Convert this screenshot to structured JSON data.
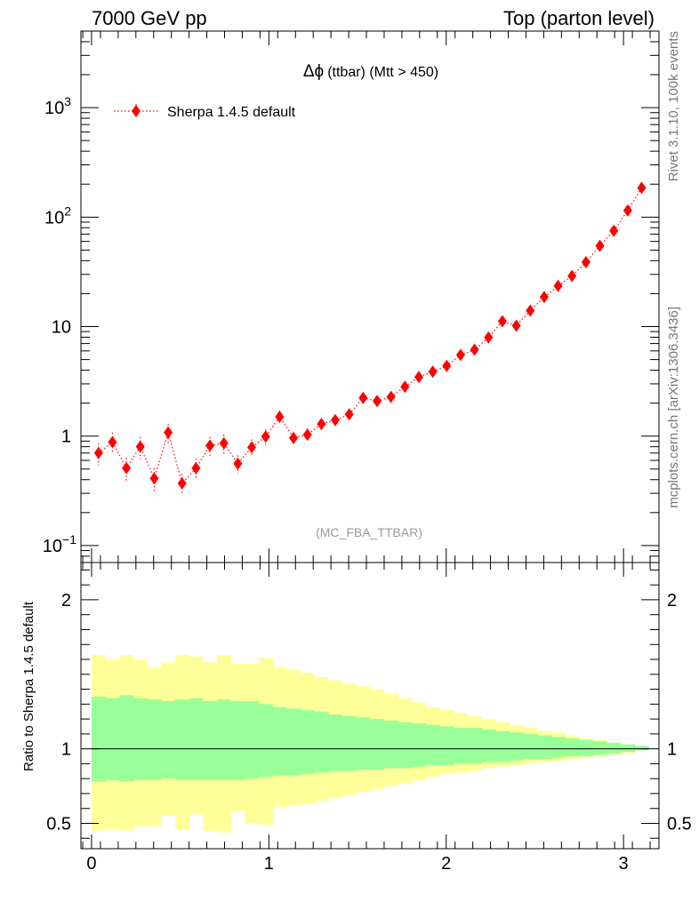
{
  "header": {
    "left": "7000 GeV pp",
    "right": "Top (parton level)"
  },
  "side_labels": {
    "upper": "Rivet 3.1.10,  100k events",
    "lower": "mcplots.cern.ch [arXiv:1306.3436]"
  },
  "chart_data": [
    {
      "type": "scatter",
      "title_symbol": "Δϕ",
      "title_rest": "(ttbar) (Mtt > 450)",
      "watermark": "(MC_FBA_TTBAR)",
      "yscale": "log",
      "xlim": [
        -0.06,
        3.2
      ],
      "ylim": [
        0.07,
        5000
      ],
      "yticks": [
        {
          "v": 1000,
          "base": "10",
          "exp": "3"
        },
        {
          "v": 100,
          "base": "10",
          "exp": "2"
        },
        {
          "v": 10,
          "base": "10",
          "exp": ""
        },
        {
          "v": 1,
          "base": "1",
          "exp": ""
        },
        {
          "v": 0.1,
          "base": "10",
          "exp": "−1"
        }
      ],
      "legend_position": "top-left",
      "series": [
        {
          "name": "Sherpa 1.4.5 default",
          "color": "#ff0000",
          "marker": "diamond",
          "line": "dotted",
          "x": [
            0.0393,
            0.1178,
            0.1963,
            0.2749,
            0.3534,
            0.432,
            0.5105,
            0.589,
            0.6676,
            0.7461,
            0.8247,
            0.9032,
            0.9817,
            1.0603,
            1.1388,
            1.2174,
            1.2959,
            1.3744,
            1.453,
            1.5315,
            1.6101,
            1.6886,
            1.7671,
            1.8457,
            1.9242,
            2.0028,
            2.0813,
            2.1598,
            2.2384,
            2.3169,
            2.3955,
            2.474,
            2.5525,
            2.6311,
            2.7096,
            2.7882,
            2.8667,
            2.9452,
            3.0238,
            3.1023
          ],
          "y": [
            0.7,
            0.88,
            0.51,
            0.8,
            0.41,
            1.08,
            0.37,
            0.51,
            0.82,
            0.86,
            0.56,
            0.79,
            0.99,
            1.5,
            0.96,
            1.03,
            1.29,
            1.4,
            1.58,
            2.23,
            2.09,
            2.28,
            2.82,
            3.46,
            3.87,
            4.37,
            5.51,
            6.15,
            7.96,
            11.2,
            10.2,
            14.0,
            18.6,
            23.5,
            29.0,
            38.8,
            54.7,
            75.1,
            115.0,
            185.0
          ],
          "err_rel": [
            0.23,
            0.22,
            0.24,
            0.23,
            0.24,
            0.2,
            0.22,
            0.22,
            0.2,
            0.2,
            0.19,
            0.18,
            0.16,
            0.14,
            0.14,
            0.14,
            0.12,
            0.11,
            0.11,
            0.1,
            0.1,
            0.09,
            0.09,
            0.08,
            0.07,
            0.07,
            0.06,
            0.06,
            0.05,
            0.05,
            0.05,
            0.045,
            0.04,
            0.035,
            0.03,
            0.03,
            0.025,
            0.02,
            0.02,
            0.015
          ]
        }
      ]
    },
    {
      "type": "area",
      "ylabel": "Ratio to Sherpa 1.4.5 default",
      "xlim": [
        -0.06,
        3.2
      ],
      "ylim": [
        0.33,
        2.25
      ],
      "xticks": [
        "0",
        "1",
        "2",
        "3"
      ],
      "yticks": [
        "0.5",
        "1",
        "2"
      ],
      "reference_line": 1,
      "band_colors": {
        "inner": "#99ff99",
        "outer": "#ffff99"
      },
      "x_edges": [
        0.0,
        0.0785,
        0.1571,
        0.2356,
        0.3142,
        0.3927,
        0.4712,
        0.5498,
        0.6283,
        0.7069,
        0.7854,
        0.8639,
        0.9425,
        1.021,
        1.0996,
        1.1781,
        1.2566,
        1.3352,
        1.4137,
        1.4923,
        1.5708,
        1.6493,
        1.7279,
        1.8064,
        1.885,
        1.9635,
        2.042,
        2.1206,
        2.1991,
        2.2777,
        2.3562,
        2.4347,
        2.5133,
        2.5918,
        2.6704,
        2.7489,
        2.8274,
        2.906,
        2.9845,
        3.0631,
        3.1416
      ],
      "inner_up": [
        1.35,
        1.34,
        1.36,
        1.34,
        1.33,
        1.32,
        1.33,
        1.34,
        1.32,
        1.33,
        1.32,
        1.32,
        1.3,
        1.28,
        1.27,
        1.26,
        1.25,
        1.23,
        1.22,
        1.21,
        1.2,
        1.19,
        1.18,
        1.17,
        1.16,
        1.15,
        1.14,
        1.14,
        1.13,
        1.12,
        1.11,
        1.1,
        1.09,
        1.08,
        1.07,
        1.06,
        1.05,
        1.04,
        1.03,
        1.02
      ],
      "inner_dn": [
        0.78,
        0.79,
        0.78,
        0.79,
        0.79,
        0.8,
        0.79,
        0.79,
        0.79,
        0.79,
        0.79,
        0.8,
        0.81,
        0.82,
        0.82,
        0.83,
        0.84,
        0.85,
        0.85,
        0.86,
        0.86,
        0.87,
        0.87,
        0.88,
        0.89,
        0.89,
        0.9,
        0.9,
        0.91,
        0.91,
        0.92,
        0.93,
        0.93,
        0.94,
        0.95,
        0.95,
        0.96,
        0.97,
        0.98,
        0.99
      ],
      "outer_up": [
        1.63,
        1.6,
        1.63,
        1.6,
        1.55,
        1.58,
        1.63,
        1.62,
        1.58,
        1.63,
        1.57,
        1.57,
        1.61,
        1.55,
        1.53,
        1.51,
        1.48,
        1.46,
        1.44,
        1.42,
        1.4,
        1.37,
        1.34,
        1.31,
        1.28,
        1.26,
        1.24,
        1.22,
        1.2,
        1.18,
        1.16,
        1.14,
        1.12,
        1.11,
        1.09,
        1.07,
        1.06,
        1.04,
        1.03,
        1.01
      ],
      "outer_dn": [
        0.45,
        0.46,
        0.45,
        0.48,
        0.48,
        0.55,
        0.46,
        0.56,
        0.45,
        0.44,
        0.58,
        0.5,
        0.49,
        0.61,
        0.62,
        0.63,
        0.65,
        0.67,
        0.69,
        0.71,
        0.73,
        0.75,
        0.77,
        0.79,
        0.81,
        0.83,
        0.84,
        0.85,
        0.87,
        0.88,
        0.89,
        0.9,
        0.91,
        0.92,
        0.93,
        0.94,
        0.95,
        0.96,
        0.97,
        0.99
      ]
    }
  ]
}
